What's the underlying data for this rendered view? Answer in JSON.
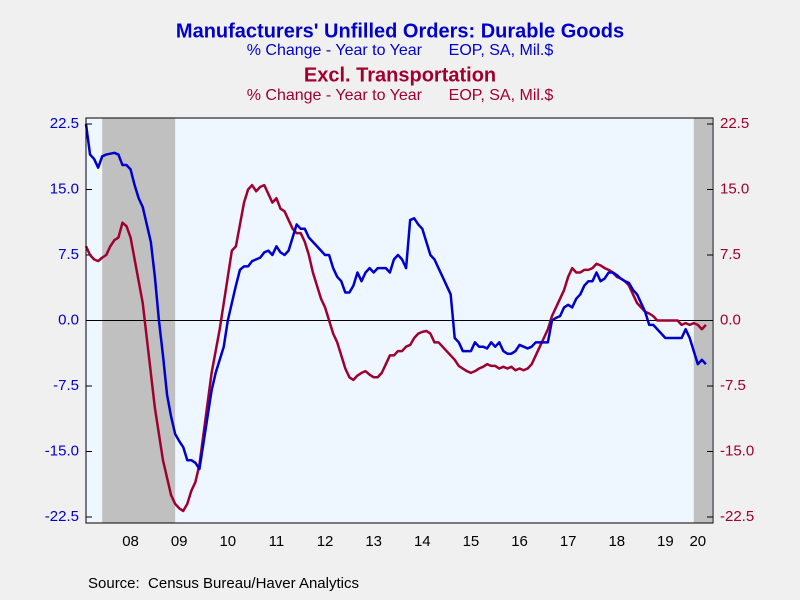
{
  "chart_data": {
    "type": "line",
    "series": [
      {
        "name": "Manufacturers' Unfilled Orders: Durable Goods",
        "subtitle": "% Change - Year to Year      EOP, SA, Mil.$",
        "color": "#0000cc",
        "values": [
          22.5,
          19,
          18.5,
          17.5,
          18.8,
          19,
          19.1,
          19.2,
          19,
          17.8,
          17.8,
          17.3,
          15.5,
          14,
          13,
          11,
          9,
          5,
          0,
          -4,
          -8.5,
          -11,
          -13,
          -13.8,
          -14.5,
          -16,
          -16,
          -16.3,
          -17,
          -14,
          -11,
          -8,
          -6,
          -4.5,
          -3,
          0,
          2,
          4,
          5.8,
          6.2,
          6.2,
          6.8,
          7,
          7.2,
          7.8,
          8,
          7.5,
          8.5,
          7.8,
          7.5,
          8,
          9.5,
          11,
          10.5,
          10.5,
          9.5,
          9,
          8.5,
          8,
          7.5,
          7.5,
          6,
          5,
          4.5,
          3.2,
          3.2,
          4,
          5.5,
          4.5,
          5.5,
          6,
          5.5,
          6,
          6,
          6,
          5.5,
          7,
          7.5,
          7,
          6,
          11.5,
          11.7,
          11,
          10.5,
          9,
          7.5,
          7,
          6,
          5,
          4,
          3,
          -2,
          -2.5,
          -3.5,
          -3.5,
          -3.5,
          -2.5,
          -3,
          -3,
          -3.2,
          -2.5,
          -3,
          -2.5,
          -3.5,
          -3.8,
          -3.8,
          -3.5,
          -2.8,
          -3,
          -3.2,
          -3,
          -2.5,
          -2.5,
          -2.5,
          -2.5,
          0,
          0.3,
          0.5,
          1.5,
          1.8,
          1.5,
          2.5,
          3,
          4,
          4.5,
          4.5,
          5.5,
          4.5,
          4.8,
          5.5,
          5.5,
          5.2,
          4.8,
          4.5,
          4.3,
          3.5,
          3,
          2,
          1,
          -0.5,
          -0.5,
          -1,
          -1.5,
          -2,
          -2,
          -2,
          -2,
          -2,
          -1,
          -2,
          -3.5,
          -5,
          -4.5,
          -5
        ]
      },
      {
        "name": "Excl. Transportation",
        "subtitle": "% Change - Year to Year      EOP, SA, Mil.$",
        "color": "#a00030",
        "axis": "y2",
        "values": [
          8.5,
          7.5,
          7,
          6.8,
          7.2,
          7.5,
          8.5,
          9.2,
          9.5,
          11.2,
          10.8,
          9.5,
          7,
          4.5,
          2,
          -2,
          -6,
          -10,
          -13,
          -16,
          -18,
          -20,
          -21,
          -21.5,
          -21.8,
          -21,
          -19.5,
          -18.5,
          -16.5,
          -13,
          -9.5,
          -6,
          -3.5,
          -1,
          2,
          5,
          8,
          8.5,
          11,
          13.5,
          15,
          15.5,
          14.8,
          15.3,
          15.5,
          14.5,
          13.5,
          14,
          12.8,
          12.5,
          11.5,
          10.5,
          10,
          10,
          9,
          7.5,
          5.5,
          4,
          2.5,
          1.5,
          0,
          -1.5,
          -2.5,
          -4,
          -5.5,
          -6.5,
          -6.8,
          -6.3,
          -6,
          -5.8,
          -6.2,
          -6.5,
          -6.5,
          -6,
          -5,
          -4,
          -4,
          -3.5,
          -3.5,
          -3,
          -2.8,
          -2,
          -1.5,
          -1.3,
          -1.2,
          -1.5,
          -2.5,
          -2.5,
          -3,
          -3.5,
          -4,
          -4.5,
          -5.2,
          -5.5,
          -5.8,
          -6,
          -5.8,
          -5.5,
          -5.3,
          -5,
          -5.2,
          -5.2,
          -5.5,
          -5.3,
          -5.5,
          -5.3,
          -5.7,
          -5.5,
          -5.7,
          -5.5,
          -5,
          -4,
          -3,
          -2,
          -1,
          0.5,
          1.5,
          2.5,
          3.5,
          5,
          6,
          5.5,
          5.5,
          5.8,
          5.8,
          6,
          6.5,
          6.3,
          6,
          5.8,
          5.5,
          5,
          4.8,
          4.5,
          4,
          3,
          2,
          1.5,
          1,
          0.8,
          0.5,
          0,
          0,
          0,
          0,
          0,
          0,
          -0.5,
          -0.3,
          -0.5,
          -0.3,
          -0.5,
          -1,
          -0.5
        ]
      }
    ],
    "categories": [
      null,
      null,
      null,
      null,
      null,
      null,
      null,
      null,
      null,
      null,
      null,
      "08",
      null,
      null,
      null,
      null,
      null,
      null,
      null,
      null,
      null,
      null,
      null,
      "09",
      null,
      null,
      null,
      null,
      null,
      null,
      null,
      null,
      null,
      null,
      null,
      "10",
      null,
      null,
      null,
      null,
      null,
      null,
      null,
      null,
      null,
      null,
      null,
      "11",
      null,
      null,
      null,
      null,
      null,
      null,
      null,
      null,
      null,
      null,
      null,
      "12",
      null,
      null,
      null,
      null,
      null,
      null,
      null,
      null,
      null,
      null,
      null,
      "13",
      null,
      null,
      null,
      null,
      null,
      null,
      null,
      null,
      null,
      null,
      null,
      "14",
      null,
      null,
      null,
      null,
      null,
      null,
      null,
      null,
      null,
      null,
      null,
      "15",
      null,
      null,
      null,
      null,
      null,
      null,
      null,
      null,
      null,
      null,
      null,
      "16",
      null,
      null,
      null,
      null,
      null,
      null,
      null,
      null,
      null,
      null,
      null,
      "17",
      null,
      null,
      null,
      null,
      null,
      null,
      null,
      null,
      null,
      null,
      null,
      "18",
      null,
      null,
      null,
      null,
      null,
      null,
      null,
      null,
      null,
      null,
      null,
      "19",
      null,
      null,
      null,
      null,
      null,
      null,
      null,
      "20",
      null,
      null
    ],
    "ylim": [
      -22.5,
      22.5
    ],
    "yticks": [
      22.5,
      {
        "value": 15,
        "label": "15.0"
      },
      7.5,
      {
        "value": 0,
        "label": "0.0"
      },
      -7.5,
      {
        "value": -15,
        "label": "-15.0"
      },
      -22.5
    ],
    "y2lim": [
      -22.5,
      22.5
    ],
    "y2ticks": [
      22.5,
      {
        "value": 15,
        "label": "15.0"
      },
      7.5,
      {
        "value": 0,
        "label": "0.0"
      },
      -7.5,
      {
        "value": -15,
        "label": "-15.0"
      },
      -22.5
    ],
    "recession_shading": [
      [
        4,
        22
      ],
      [
        150,
        154.5
      ]
    ],
    "shading_color": "#c0c0c0",
    "zero_line": true,
    "source": "Source:  Census Bureau/Haver Analytics"
  }
}
